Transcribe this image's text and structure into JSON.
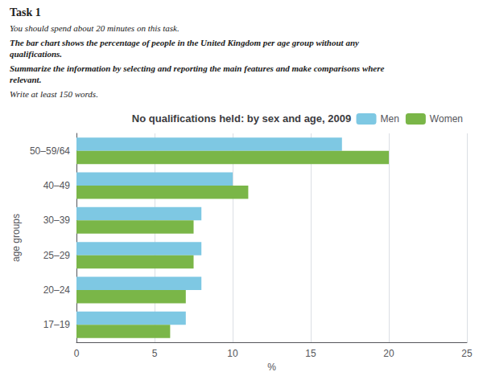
{
  "chart_data": {
    "type": "bar",
    "orientation": "horizontal",
    "title": "No qualifications held: by sex and age, 2009",
    "annotations": [
      "Task 1",
      "You should spend about 20 minutes on this task.",
      "The bar chart shows the percentage of people in the United Kingdom per age group without any qualifications.",
      "Summarize the information by selecting and reporting the main features and make comparisons where relevant.",
      "Write at least 150 words."
    ],
    "categories": [
      "17–19",
      "20–24",
      "25–29",
      "30–39",
      "40–49",
      "50–59/64"
    ],
    "series": [
      {
        "name": "Men",
        "color": "#7ec8e3",
        "values": [
          7.0,
          8.0,
          8.0,
          8.0,
          10.0,
          17.0
        ]
      },
      {
        "name": "Women",
        "color": "#7ab648",
        "values": [
          6.0,
          7.0,
          7.5,
          7.5,
          11.0,
          20.0
        ]
      }
    ],
    "xlabel": "%",
    "ylabel": "age groups",
    "xlim": [
      0,
      25
    ],
    "xticks": [
      0,
      5,
      10,
      15,
      20,
      25
    ],
    "grid": true,
    "legend": "upper right"
  }
}
